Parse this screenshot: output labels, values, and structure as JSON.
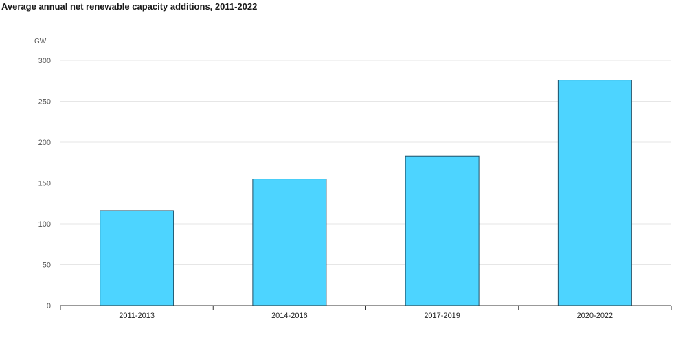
{
  "chart_data": {
    "type": "bar",
    "title": "Average annual net renewable capacity additions, 2011-2022",
    "ylabel": "GW",
    "xlabel": "",
    "categories": [
      "2011-2013",
      "2014-2016",
      "2017-2019",
      "2020-2022"
    ],
    "values": [
      116,
      155,
      183,
      276
    ],
    "ylim": [
      0,
      300
    ],
    "yticks": [
      0,
      50,
      100,
      150,
      200,
      250,
      300
    ],
    "grid": true,
    "legend": "none",
    "colors": {
      "bar_fill": "#4dd4ff",
      "bar_stroke": "#1f4f66",
      "grid": "#e6e6e6",
      "axis": "#333333"
    }
  }
}
